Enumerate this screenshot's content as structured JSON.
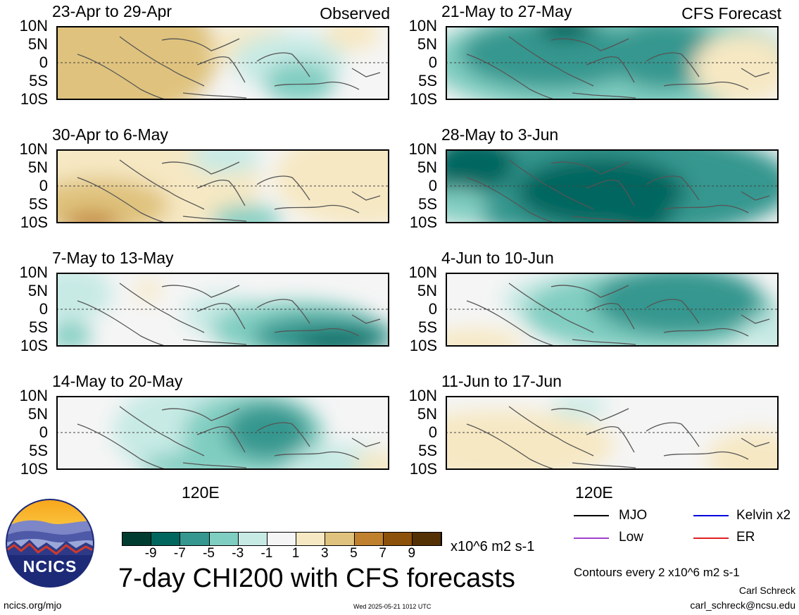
{
  "observed_label": "Observed",
  "forecast_label": "CFS Forecast",
  "lat_labels": [
    "10N",
    "5N",
    "0",
    "5S",
    "10S"
  ],
  "x_axis_label": "120E",
  "panels": [
    {
      "title": "23-Apr to 29-Apr"
    },
    {
      "title": "30-Apr to 6-May"
    },
    {
      "title": "7-May to 13-May"
    },
    {
      "title": "14-May to 20-May"
    },
    {
      "title": "21-May to 27-May"
    },
    {
      "title": "28-May to 3-Jun"
    },
    {
      "title": "4-Jun to 10-Jun"
    },
    {
      "title": "11-Jun to 17-Jun"
    }
  ],
  "colorbar": {
    "labels": [
      "-9",
      "-7",
      "-5",
      "-3",
      "-1",
      "1",
      "3",
      "5",
      "7",
      "9"
    ],
    "colors": [
      "#003c30",
      "#01665e",
      "#35978f",
      "#80cdc1",
      "#c7eae5",
      "#f5f5f5",
      "#f6e8c3",
      "#dfc27d",
      "#bf812d",
      "#8c510a",
      "#543005"
    ],
    "units": "x10^6 m2 s-1"
  },
  "main_title": "7-day CHI200 with CFS forecasts",
  "legend": [
    {
      "label": "MJO",
      "color": "#000000"
    },
    {
      "label": "Kelvin x2",
      "color": "#0000dd"
    },
    {
      "label": "Low",
      "color": "#a040d0"
    },
    {
      "label": "ER",
      "color": "#e02020"
    }
  ],
  "contour_note": "Contours every 2 x10^6 m2 s-1",
  "author_name": "Carl Schreck",
  "author_email": "carl_schreck@ncsu.edu",
  "site": "ncics.org/mjo",
  "timestamp": "Wed 2025-05-21 1012 UTC",
  "logo_text": "NCICS"
}
